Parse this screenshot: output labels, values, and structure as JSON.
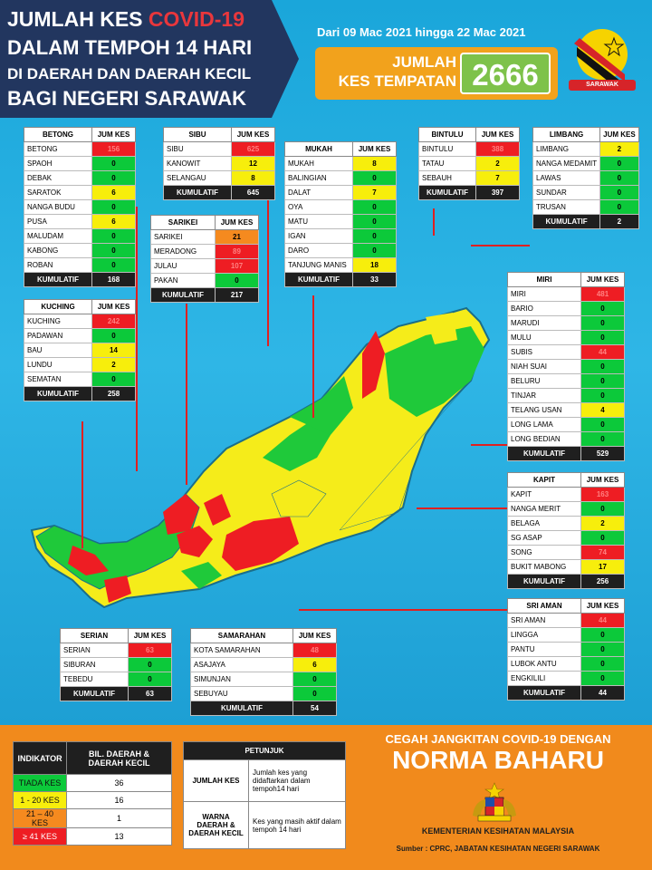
{
  "header": {
    "line1a": "JUMLAH KES",
    "line1b": "COVID-19",
    "line2": "DALAM TEMPOH 14 HARI",
    "line3": "DI DAERAH DAN DAERAH KECIL",
    "line4": "BAGI NEGERI SARAWAK",
    "date_range": "Dari 09 Mac 2021 hingga 22 Mac 2021",
    "total_label_1": "JUMLAH",
    "total_label_2": "KES TEMPATAN",
    "total_value": "2666",
    "logo_label": "SARAWAK"
  },
  "col_header": "JUM KES",
  "kumulatif_label": "KUMULATIF",
  "divisions": {
    "betong": {
      "name": "BETONG",
      "rows": [
        [
          "BETONG",
          "156",
          "r"
        ],
        [
          "SPAOH",
          "0",
          "g"
        ],
        [
          "DEBAK",
          "0",
          "g"
        ],
        [
          "SARATOK",
          "6",
          "y"
        ],
        [
          "NANGA BUDU",
          "0",
          "g"
        ],
        [
          "PUSA",
          "6",
          "y"
        ],
        [
          "MALUDAM",
          "0",
          "g"
        ],
        [
          "KABONG",
          "0",
          "g"
        ],
        [
          "ROBAN",
          "0",
          "g"
        ]
      ],
      "total": "168"
    },
    "sibu": {
      "name": "SIBU",
      "rows": [
        [
          "SIBU",
          "625",
          "r"
        ],
        [
          "KANOWIT",
          "12",
          "y"
        ],
        [
          "SELANGAU",
          "8",
          "y"
        ]
      ],
      "total": "645"
    },
    "sarikei": {
      "name": "SARIKEI",
      "rows": [
        [
          "SARIKEI",
          "21",
          "o"
        ],
        [
          "MERADONG",
          "89",
          "r"
        ],
        [
          "JULAU",
          "107",
          "r"
        ],
        [
          "PAKAN",
          "0",
          "g"
        ]
      ],
      "total": "217"
    },
    "mukah": {
      "name": "MUKAH",
      "rows": [
        [
          "MUKAH",
          "8",
          "y"
        ],
        [
          "BALINGIAN",
          "0",
          "g"
        ],
        [
          "DALAT",
          "7",
          "y"
        ],
        [
          "OYA",
          "0",
          "g"
        ],
        [
          "MATU",
          "0",
          "g"
        ],
        [
          "IGAN",
          "0",
          "g"
        ],
        [
          "DARO",
          "0",
          "g"
        ],
        [
          "TANJUNG MANIS",
          "18",
          "y"
        ]
      ],
      "total": "33"
    },
    "bintulu": {
      "name": "BINTULU",
      "rows": [
        [
          "BINTULU",
          "388",
          "r"
        ],
        [
          "TATAU",
          "2",
          "y"
        ],
        [
          "SEBAUH",
          "7",
          "y"
        ]
      ],
      "total": "397"
    },
    "limbang": {
      "name": "LIMBANG",
      "rows": [
        [
          "LIMBANG",
          "2",
          "y"
        ],
        [
          "NANGA MEDAMIT",
          "0",
          "g"
        ],
        [
          "LAWAS",
          "0",
          "g"
        ],
        [
          "SUNDAR",
          "0",
          "g"
        ],
        [
          "TRUSAN",
          "0",
          "g"
        ]
      ],
      "total": "2"
    },
    "kuching": {
      "name": "KUCHING",
      "rows": [
        [
          "KUCHING",
          "242",
          "r"
        ],
        [
          "PADAWAN",
          "0",
          "g"
        ],
        [
          "BAU",
          "14",
          "y"
        ],
        [
          "LUNDU",
          "2",
          "y"
        ],
        [
          "SEMATAN",
          "0",
          "g"
        ]
      ],
      "total": "258"
    },
    "miri": {
      "name": "MIRI",
      "rows": [
        [
          "MIRI",
          "481",
          "r"
        ],
        [
          "BARIO",
          "0",
          "g"
        ],
        [
          "MARUDI",
          "0",
          "g"
        ],
        [
          "MULU",
          "0",
          "g"
        ],
        [
          "SUBIS",
          "44",
          "r"
        ],
        [
          "NIAH SUAI",
          "0",
          "g"
        ],
        [
          "BELURU",
          "0",
          "g"
        ],
        [
          "TINJAR",
          "0",
          "g"
        ],
        [
          "TELANG USAN",
          "4",
          "y"
        ],
        [
          "LONG LAMA",
          "0",
          "g"
        ],
        [
          "LONG BEDIAN",
          "0",
          "g"
        ]
      ],
      "total": "529"
    },
    "kapit": {
      "name": "KAPIT",
      "rows": [
        [
          "KAPIT",
          "163",
          "r"
        ],
        [
          "NANGA MERIT",
          "0",
          "g"
        ],
        [
          "BELAGA",
          "2",
          "y"
        ],
        [
          "SG ASAP",
          "0",
          "g"
        ],
        [
          "SONG",
          "74",
          "r"
        ],
        [
          "BUKIT MABONG",
          "17",
          "y"
        ]
      ],
      "total": "256"
    },
    "sriaman": {
      "name": "SRI AMAN",
      "rows": [
        [
          "SRI AMAN",
          "44",
          "r"
        ],
        [
          "LINGGA",
          "0",
          "g"
        ],
        [
          "PANTU",
          "0",
          "g"
        ],
        [
          "LUBOK ANTU",
          "0",
          "g"
        ],
        [
          "ENGKILILI",
          "0",
          "g"
        ]
      ],
      "total": "44"
    },
    "serian": {
      "name": "SERIAN",
      "rows": [
        [
          "SERIAN",
          "63",
          "r"
        ],
        [
          "SIBURAN",
          "0",
          "g"
        ],
        [
          "TEBEDU",
          "0",
          "g"
        ]
      ],
      "total": "63"
    },
    "samarahan": {
      "name": "SAMARAHAN",
      "rows": [
        [
          "KOTA SAMARAHAN",
          "48",
          "r"
        ],
        [
          "ASAJAYA",
          "6",
          "y"
        ],
        [
          "SIMUNJAN",
          "0",
          "g"
        ],
        [
          "SEBUYAU",
          "0",
          "g"
        ]
      ],
      "total": "54"
    }
  },
  "indicator": {
    "h1": "INDIKATOR",
    "h2": "BIL. DAERAH & DAERAH KECIL",
    "rows": [
      [
        "TIADA KES",
        "36",
        "#0cc93a"
      ],
      [
        "1 - 20 KES",
        "16",
        "#f7ee0c"
      ],
      [
        "21 – 40 KES",
        "1",
        "#f58a1f"
      ],
      [
        "≥ 41 KES",
        "13",
        "#ee1d23"
      ]
    ]
  },
  "petunjuk": {
    "title": "PETUNJUK",
    "r1k": "JUMLAH KES",
    "r1v": "Jumlah kes yang didaftarkan dalam tempoh14 hari",
    "r2k": "WARNA DAERAH & DAERAH KECIL",
    "r2v": "Kes yang masih aktif dalam tempoh 14 hari"
  },
  "slogan": {
    "line1": "CEGAH JANGKITAN COVID-19 DENGAN",
    "line2": "NORMA BAHARU"
  },
  "ministry": "KEMENTERIAN KESIHATAN MALAYSIA",
  "source": "Sumber : CPRC, JABATAN KESIHATAN NEGERI SARAWAK",
  "map_labels": [
    "LUNDU",
    "MIRI",
    "BINTULU",
    "LIMBANG",
    "LAWAS",
    "KAPIT",
    "BELAGA",
    "SONG",
    "MUKAH",
    "DALAT",
    "SIBU",
    "KUCHING",
    "SERIAN",
    "SRI AMAN",
    "BETONG",
    "SARIKEI",
    "JULAU",
    "TATAU",
    "SEBAUH",
    "MARUDI",
    "TINJAR",
    "TELANG USAN",
    "BARIO",
    "MULU",
    "BELURU",
    "SUBIS",
    "NIAH SUAI",
    "BALINGIAN",
    "SELANGAU",
    "KANOWIT",
    "PAKAN",
    "LUBOK ANTU",
    "ENGKILILI",
    "SARATOK",
    "ROBAN",
    "PUSA",
    "KABONG",
    "MALUDAM",
    "SPAOH",
    "DEBAK",
    "SEBUYAU",
    "SIMUNJAN",
    "BAU",
    "PADAWAN",
    "SIBURAN",
    "TEBEDU",
    "ASAJAYA",
    "TANJUNG MANIS",
    "DARO",
    "MATU",
    "IGAN",
    "OYA",
    "LINGGA",
    "PANTU",
    "NANGA MERIT",
    "BUKIT MABONG",
    "SG ASAP",
    "LONG LAMA",
    "TRUSAN",
    "SUNDAR",
    "NANGA MEDAMIT",
    "MERADONG",
    "KOTA SAMARAHAN",
    "LONG BEDIAN",
    "SEBAUH",
    "NANGA BUDU"
  ]
}
